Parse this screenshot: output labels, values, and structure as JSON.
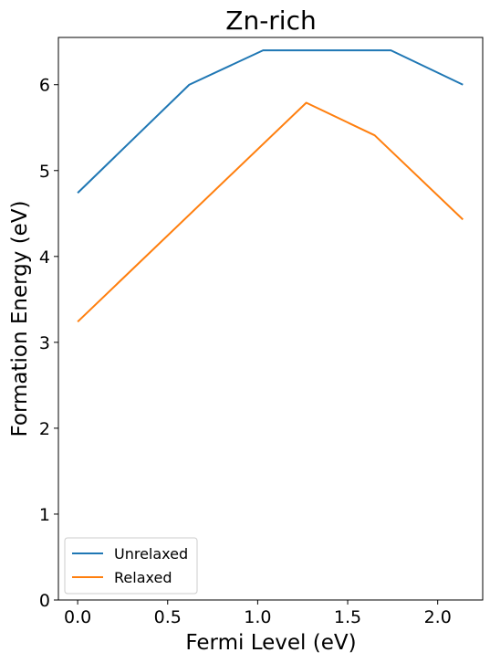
{
  "chart_data": {
    "type": "line",
    "title": "Zn-rich",
    "xlabel": "Fermi Level (eV)",
    "ylabel": "Formation Energy (eV)",
    "xlim": [
      -0.107,
      2.25
    ],
    "ylim": [
      0,
      6.55
    ],
    "xticks": [
      0.0,
      0.5,
      1.0,
      1.5,
      2.0
    ],
    "xtick_labels": [
      "0.0",
      "0.5",
      "1.0",
      "1.5",
      "2.0"
    ],
    "yticks": [
      0,
      1,
      2,
      3,
      4,
      5,
      6
    ],
    "ytick_labels": [
      "0",
      "1",
      "2",
      "3",
      "4",
      "5",
      "6"
    ],
    "grid": false,
    "legend_position": "lower-left",
    "series": [
      {
        "name": "Unrelaxed",
        "color": "#1f77b4",
        "x": [
          0.0,
          0.62,
          1.03,
          1.74,
          2.14
        ],
        "y": [
          4.74,
          6.0,
          6.4,
          6.4,
          6.0
        ]
      },
      {
        "name": "Relaxed",
        "color": "#ff7f0e",
        "x": [
          0.0,
          1.27,
          1.65,
          2.14
        ],
        "y": [
          3.24,
          5.79,
          5.41,
          4.43
        ]
      }
    ]
  }
}
